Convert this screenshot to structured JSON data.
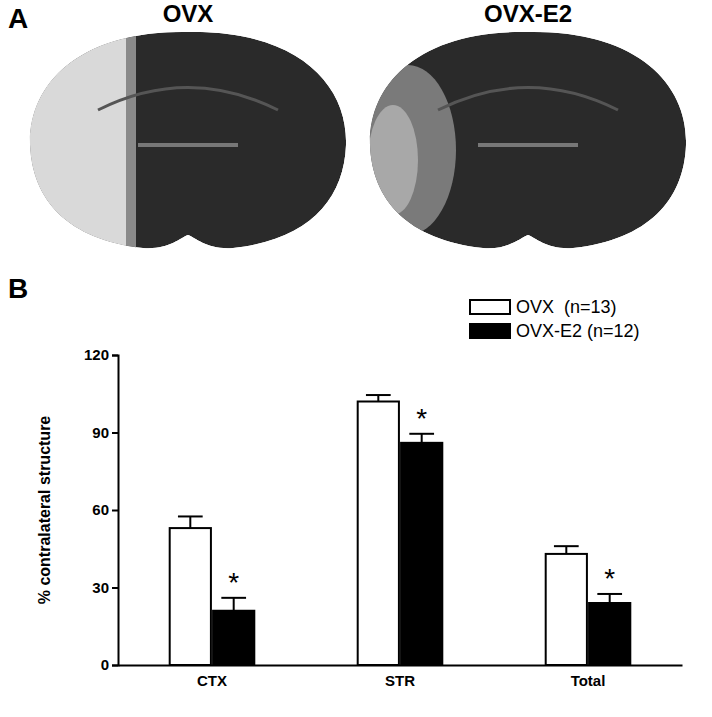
{
  "figure": {
    "panel_a": {
      "label": "A",
      "titles": [
        "OVX",
        "OVX-E2"
      ]
    },
    "panel_b_label": "B"
  },
  "chart_data": {
    "type": "bar",
    "categories": [
      "CTX",
      "STR",
      "Total"
    ],
    "y_label": "% contralateral structure",
    "series": [
      {
        "name": "OVX  (n=13)",
        "color": "#ffffff",
        "values": [
          53,
          102,
          43
        ],
        "errors": [
          4.5,
          2.5,
          3
        ]
      },
      {
        "name": "OVX-E2 (n=12)",
        "color": "#000000",
        "values": [
          21,
          86,
          24
        ],
        "errors": [
          5,
          3.5,
          3.5
        ],
        "significance": [
          "*",
          "*",
          "*"
        ]
      }
    ],
    "ylim": [
      0,
      120
    ],
    "yticks": [
      0,
      30,
      60,
      90,
      120
    ],
    "legend": "upper right",
    "grid": false
  }
}
